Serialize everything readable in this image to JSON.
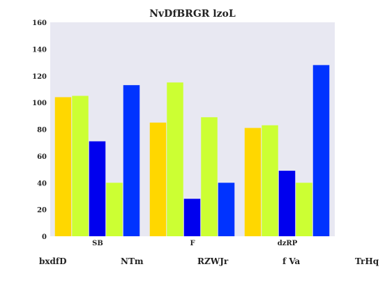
{
  "chart_data": {
    "type": "bar",
    "title": "NvDfBRGR lzoL",
    "xlabel": "",
    "ylabel": "",
    "ylim": [
      0,
      160
    ],
    "yticks": [
      0,
      20,
      40,
      60,
      80,
      100,
      120,
      140,
      160
    ],
    "categories": [
      "SB",
      "F",
      "dzRP"
    ],
    "grid": false,
    "legend_position": "bottom",
    "series": [
      {
        "name": "bxdfD",
        "color": "#FFD700",
        "values": [
          104,
          85,
          81
        ]
      },
      {
        "name": "NTm",
        "color": "#CCFF33",
        "values": [
          105,
          115,
          83
        ]
      },
      {
        "name": "RZWJr",
        "color": "#0000EE",
        "values": [
          71,
          28,
          49
        ]
      },
      {
        "name": "f Va",
        "color": "#CCFF33",
        "values": [
          40,
          89,
          40
        ]
      },
      {
        "name": "TrHq",
        "color": "#0033FF",
        "values": [
          113,
          40,
          128
        ]
      }
    ],
    "plot_background": "#E8E8F2"
  }
}
